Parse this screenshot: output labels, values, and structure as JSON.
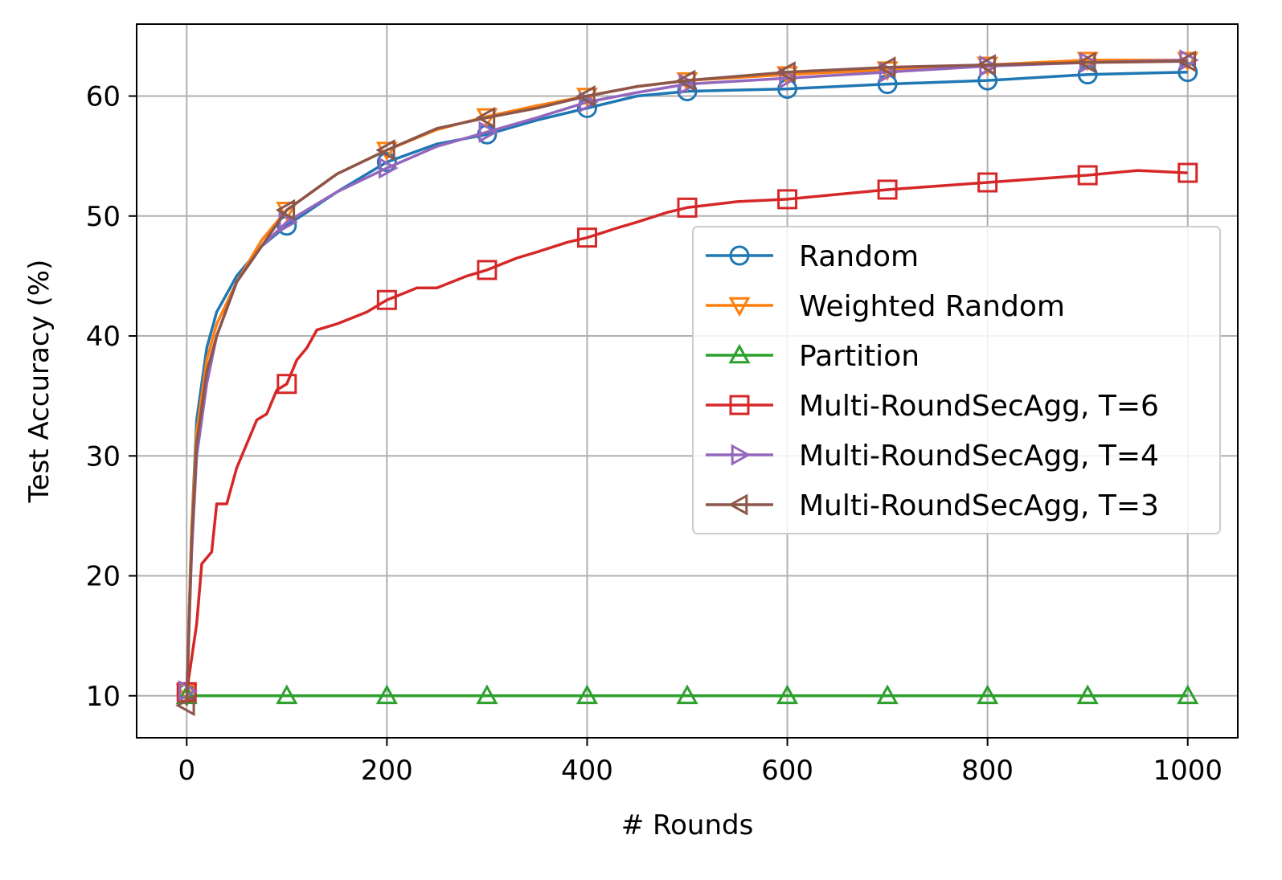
{
  "chart_data": {
    "type": "line",
    "xlabel": "# Rounds",
    "ylabel": "Test Accuracy (%)",
    "xlim": [
      -50,
      1050
    ],
    "ylim": [
      6.5,
      66
    ],
    "xticks": [
      0,
      200,
      400,
      600,
      800,
      1000
    ],
    "yticks": [
      10,
      20,
      30,
      40,
      50,
      60
    ],
    "grid": true,
    "legend_position": "center-right",
    "series": [
      {
        "name": "Random",
        "color": "#1f77b4",
        "marker": "circle",
        "x": [
          0,
          5,
          10,
          20,
          30,
          50,
          75,
          100,
          150,
          200,
          250,
          300,
          350,
          400,
          450,
          500,
          600,
          700,
          800,
          900,
          1000
        ],
        "y": [
          10.2,
          24,
          33,
          39,
          42,
          45,
          47.5,
          49.2,
          52,
          54.5,
          56,
          56.8,
          58,
          59,
          60,
          60.4,
          60.6,
          61,
          61.3,
          61.8,
          62
        ]
      },
      {
        "name": "Weighted Random",
        "color": "#ff7f0e",
        "marker": "triangle-down",
        "x": [
          0,
          5,
          10,
          20,
          30,
          50,
          75,
          100,
          150,
          200,
          250,
          300,
          350,
          400,
          450,
          500,
          600,
          700,
          800,
          900,
          1000
        ],
        "y": [
          10.3,
          24,
          32,
          38,
          41,
          44.5,
          48,
          50.5,
          53.5,
          55.5,
          57.2,
          58.3,
          59.2,
          60,
          60.8,
          61.3,
          61.8,
          62.2,
          62.6,
          63,
          63
        ]
      },
      {
        "name": "Partition",
        "color": "#2ca02c",
        "marker": "triangle-up",
        "x": [
          0,
          100,
          200,
          300,
          400,
          500,
          600,
          700,
          800,
          900,
          1000
        ],
        "y": [
          10,
          10,
          10,
          10,
          10,
          10,
          10,
          10,
          10,
          10,
          10
        ]
      },
      {
        "name": "Multi-RoundSecAgg, T=6",
        "color": "#d62728",
        "marker": "square",
        "x": [
          0,
          10,
          15,
          25,
          30,
          40,
          50,
          60,
          70,
          80,
          90,
          100,
          110,
          120,
          130,
          150,
          180,
          200,
          230,
          250,
          280,
          300,
          330,
          350,
          380,
          400,
          430,
          450,
          480,
          500,
          550,
          600,
          650,
          700,
          750,
          800,
          850,
          900,
          950,
          1000
        ],
        "y": [
          10.3,
          16,
          21,
          22,
          26,
          26,
          29,
          31,
          33,
          33.5,
          35.5,
          36,
          38,
          39,
          40.5,
          41,
          42,
          43,
          44,
          44,
          45,
          45.5,
          46.5,
          47,
          47.8,
          48.2,
          49,
          49.5,
          50.3,
          50.7,
          51.2,
          51.4,
          51.8,
          52.2,
          52.5,
          52.8,
          53.1,
          53.4,
          53.8,
          53.6
        ]
      },
      {
        "name": "Multi-RoundSecAgg, T=4",
        "color": "#9467bd",
        "marker": "triangle-right",
        "x": [
          0,
          5,
          10,
          20,
          30,
          50,
          75,
          100,
          150,
          200,
          250,
          300,
          350,
          400,
          450,
          500,
          600,
          700,
          800,
          900,
          1000
        ],
        "y": [
          10.4,
          22,
          30,
          36,
          40,
          44.5,
          47.5,
          49.5,
          52,
          54,
          55.8,
          57,
          58.2,
          59.5,
          60.3,
          61,
          61.5,
          62,
          62.5,
          62.8,
          63
        ]
      },
      {
        "name": "Multi-RoundSecAgg, T=3",
        "color": "#8c564b",
        "marker": "triangle-left",
        "x": [
          0,
          5,
          10,
          20,
          30,
          50,
          75,
          100,
          150,
          200,
          250,
          300,
          350,
          400,
          450,
          500,
          600,
          700,
          800,
          900,
          1000
        ],
        "y": [
          9.2,
          23,
          31,
          37,
          40,
          44.5,
          47.5,
          50.5,
          53.5,
          55.5,
          57.3,
          58.2,
          59,
          60,
          60.8,
          61.3,
          62,
          62.4,
          62.6,
          62.8,
          62.9
        ]
      }
    ]
  }
}
